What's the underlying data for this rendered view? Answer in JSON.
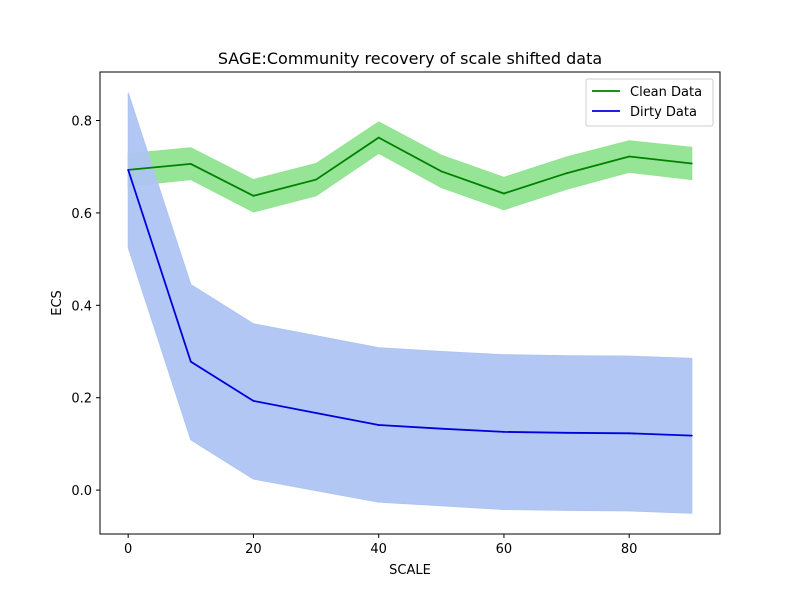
{
  "chart_data": {
    "type": "line",
    "title": "SAGE:Community recovery of scale shifted data",
    "xlabel": "SCALE",
    "ylabel": "ECS",
    "xlim": [
      -4.5,
      94.5
    ],
    "ylim": [
      -0.095,
      0.905
    ],
    "x_ticks": [
      0,
      20,
      40,
      60,
      80
    ],
    "y_ticks": [
      0.0,
      0.2,
      0.4,
      0.6,
      0.8
    ],
    "x_tick_labels": [
      "0",
      "20",
      "40",
      "60",
      "80"
    ],
    "y_tick_labels": [
      "0.0",
      "0.2",
      "0.4",
      "0.6",
      "0.8"
    ],
    "grid": false,
    "legend_position": "top-right",
    "x": [
      0,
      10,
      20,
      30,
      40,
      50,
      60,
      70,
      80,
      90
    ],
    "series": [
      {
        "name": "Clean Data",
        "color": "#008000",
        "band_color": "#90e490",
        "values": [
          0.693,
          0.706,
          0.637,
          0.672,
          0.763,
          0.69,
          0.642,
          0.686,
          0.722,
          0.707
        ],
        "upper": [
          0.728,
          0.741,
          0.672,
          0.707,
          0.797,
          0.725,
          0.677,
          0.721,
          0.756,
          0.742
        ],
        "lower": [
          0.658,
          0.672,
          0.602,
          0.637,
          0.729,
          0.655,
          0.607,
          0.651,
          0.688,
          0.672
        ]
      },
      {
        "name": "Dirty Data",
        "color": "#0000dd",
        "band_color": "#aec4f2",
        "values": [
          0.693,
          0.278,
          0.193,
          0.167,
          0.141,
          0.133,
          0.126,
          0.124,
          0.123,
          0.118
        ],
        "upper": [
          0.86,
          0.445,
          0.36,
          0.334,
          0.308,
          0.3,
          0.293,
          0.291,
          0.29,
          0.285
        ],
        "lower": [
          0.525,
          0.109,
          0.024,
          -0.001,
          -0.026,
          -0.034,
          -0.042,
          -0.044,
          -0.045,
          -0.05
        ]
      }
    ]
  }
}
